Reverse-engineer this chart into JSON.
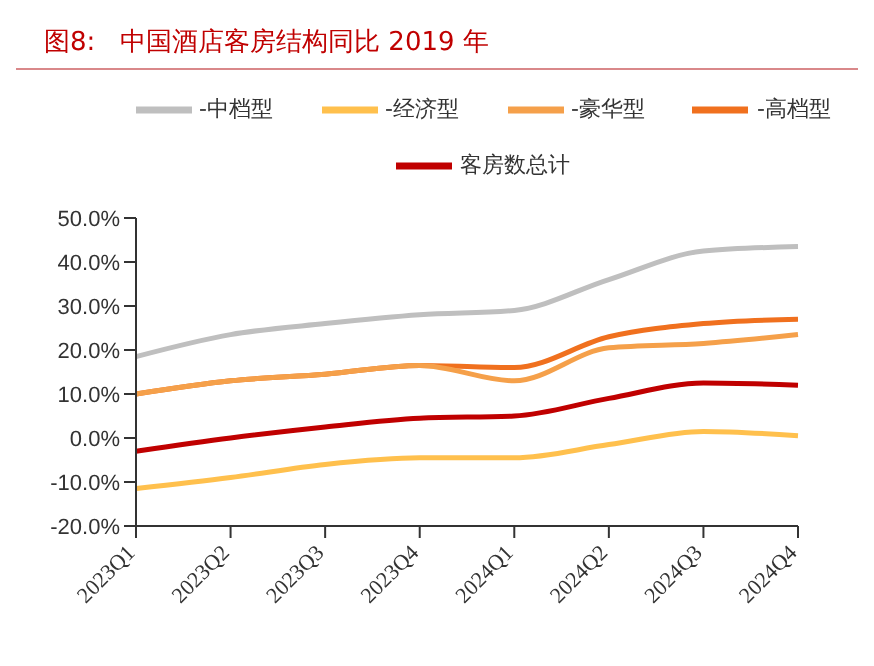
{
  "chart_data": {
    "type": "line",
    "title": "图8:   中国酒店客房结构同比 2019 年",
    "categories": [
      "2023Q1",
      "2023Q2",
      "2023Q3",
      "2023Q4",
      "2024Q1",
      "2024Q2",
      "2024Q3",
      "2024Q4"
    ],
    "series": [
      {
        "name": "客房数总计",
        "color": "#c00000",
        "values": [
          -3,
          0,
          2.5,
          4.5,
          5,
          9,
          12.5,
          12
        ]
      },
      {
        "name": "-经济型",
        "color": "#ffc04d",
        "values": [
          -11.5,
          -9,
          -6,
          -4.5,
          -4.5,
          -1.5,
          1.5,
          0.5
        ]
      },
      {
        "name": "-中档型",
        "color": "#bfbfbf",
        "values": [
          18.5,
          23.5,
          26,
          28,
          29,
          36,
          42.5,
          43.5
        ]
      },
      {
        "name": "-高档型",
        "color": "#f0701e",
        "values": [
          10,
          13,
          14.5,
          16.5,
          16,
          23,
          26,
          27
        ]
      },
      {
        "name": "-豪华型",
        "color": "#f5a04a",
        "values": [
          10,
          13,
          14.5,
          16.5,
          13,
          20.5,
          21.5,
          23.5
        ]
      }
    ],
    "ylim": [
      -20,
      50
    ],
    "yticks": [
      {
        "value": -20,
        "label": "-20.0%"
      },
      {
        "value": -10,
        "label": "-10.0%"
      },
      {
        "value": 0,
        "label": "0.0%"
      },
      {
        "value": 10,
        "label": "10.0%"
      },
      {
        "value": 20,
        "label": "20.0%"
      },
      {
        "value": 30,
        "label": "30.0%"
      },
      {
        "value": 40,
        "label": "40.0%"
      },
      {
        "value": 50,
        "label": "50.0%"
      }
    ],
    "grid": false,
    "legend": "top",
    "marker": "none",
    "line_style": "solid"
  }
}
